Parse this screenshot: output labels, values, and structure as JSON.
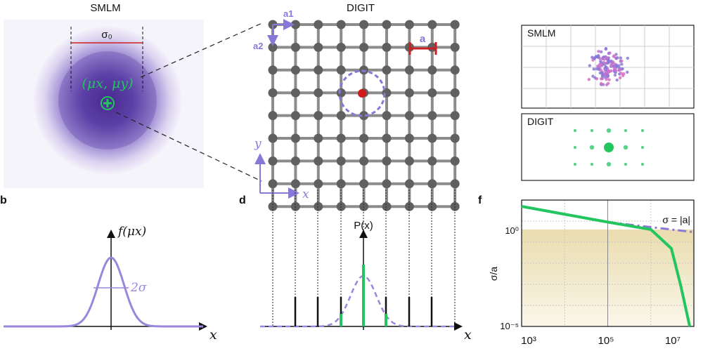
{
  "titles": {
    "smlm": "SMLM",
    "digit": "DIGIT"
  },
  "panel_letters": {
    "b": "b",
    "d": "d",
    "f": "f"
  },
  "panel_a": {
    "sigma0": "σ₀",
    "mu_label": "(μx, μy)"
  },
  "panel_c": {
    "lattice_a1": "a1",
    "lattice_a2": "a2",
    "spacing": "a",
    "axis_y": "y",
    "axis_x": "x"
  },
  "panel_e": {
    "smlm_label": "SMLM",
    "digit_label": "DIGIT"
  },
  "panel_b": {
    "ylabel": "f(μx)",
    "width_label": "2σ",
    "xlabel": "x"
  },
  "panel_d": {
    "ylabel": "P(x)",
    "xlabel": "x"
  },
  "panel_f": {
    "ylabel": "σ/a",
    "annotation": "σ = |a|",
    "xticks": [
      "10³",
      "10⁵",
      "10⁷"
    ],
    "yticks": [
      "10⁰",
      "10⁻⁵"
    ]
  },
  "colors": {
    "purple": "#8a78d8",
    "green": "#22c55e",
    "red": "#cc1f1f",
    "grey": "#666666",
    "shade": "#efe6c2"
  },
  "chart_data": {
    "type": "line",
    "xscale": "log",
    "yscale": "log",
    "xlim": [
      1000,
      10000000
    ],
    "ylim": [
      1e-05,
      10
    ],
    "ylabel": "σ/a",
    "series": [
      {
        "style": "dashed-purple",
        "x": [
          1000,
          100000,
          10000000
        ],
        "y": [
          5,
          0.9,
          0.3
        ]
      },
      {
        "style": "solid-green",
        "x": [
          1000,
          100000,
          1000000,
          3000000,
          5000000,
          8000000
        ],
        "y": [
          5,
          0.9,
          0.4,
          0.05,
          0.0008,
          1e-05
        ]
      }
    ]
  }
}
